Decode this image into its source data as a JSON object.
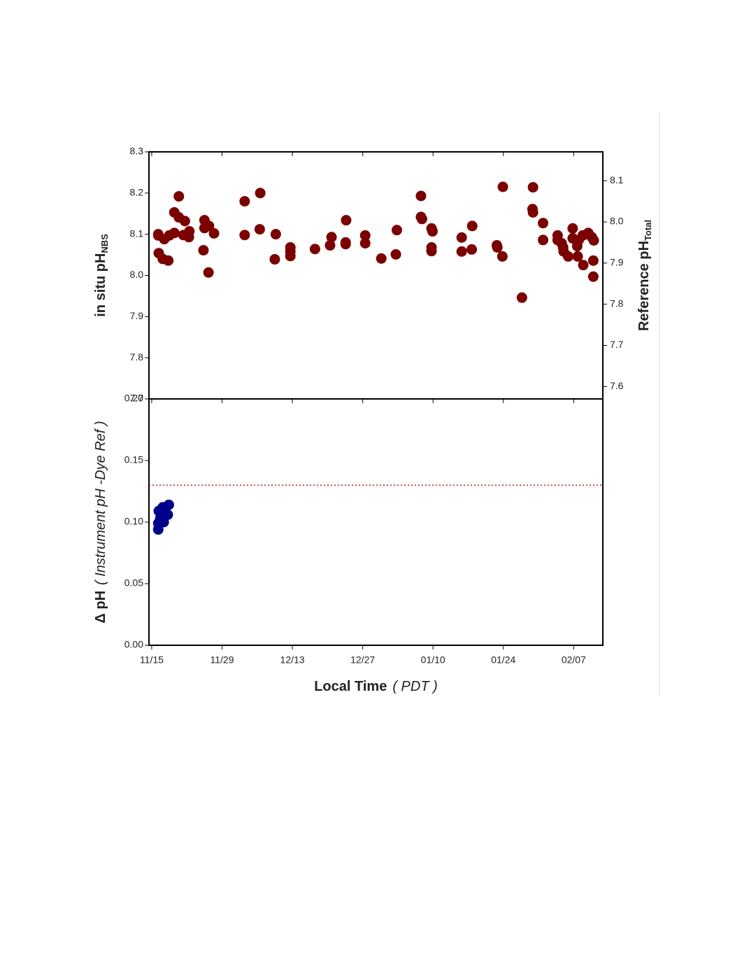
{
  "chart_data": [
    {
      "type": "scatter",
      "color": "#7b0000",
      "ylabel": {
        "text": "in situ pH",
        "sub": "NBS"
      },
      "y2label": {
        "text": "Reference pH",
        "sub": "Total"
      },
      "xlim": [
        -0.55,
        89.8
      ],
      "ylim": [
        7.7,
        8.3
      ],
      "yticks": [
        7.7,
        7.8,
        7.9,
        {
          "value": 8,
          "label": "8.0"
        },
        8.1,
        8.2,
        8.3
      ],
      "y2lim": [
        7.57,
        8.17
      ],
      "y2ticks": [
        7.6,
        7.7,
        7.8,
        7.9,
        {
          "value": 8,
          "label": "8.0"
        },
        8.1
      ],
      "x": [
        1.3,
        1.3,
        1.4,
        2.2,
        2.5,
        3.3,
        3.5,
        4.5,
        4.5,
        5.4,
        5.4,
        6.3,
        6.6,
        7.4,
        7.5,
        10.3,
        10.5,
        10.5,
        11.4,
        11.3,
        12.4,
        18.5,
        18.5,
        21.5,
        21.6,
        24.5,
        24.7,
        27.6,
        27.6,
        27.6,
        32.5,
        35.5,
        35.8,
        38.6,
        38.6,
        38.7,
        42.5,
        42.5,
        45.7,
        48.6,
        48.8,
        53.6,
        53.6,
        53.8,
        55.7,
        55.9,
        55.7,
        55.7,
        61.7,
        61.7,
        63.7,
        63.8,
        68.7,
        68.8,
        69.8,
        69.9,
        73.7,
        75.9,
        75.8,
        75.9,
        77.9,
        77.9,
        80.8,
        80.8,
        81.6,
        81.9,
        82.0,
        82.9,
        83.8,
        83.8,
        84.7,
        84.8,
        85.0,
        85.9,
        85.8,
        86.9,
        87.6,
        87.9,
        87.9,
        88.0
      ],
      "values": [
        8.1,
        8.097,
        8.054,
        8.04,
        8.088,
        8.036,
        8.097,
        8.153,
        8.103,
        8.192,
        8.141,
        8.098,
        8.132,
        8.093,
        8.107,
        8.061,
        8.134,
        8.115,
        8.12,
        8.007,
        8.102,
        8.18,
        8.098,
        8.112,
        8.2,
        8.039,
        8.1,
        8.068,
        8.047,
        8.058,
        8.064,
        8.073,
        8.093,
        8.08,
        8.076,
        8.134,
        8.097,
        8.078,
        8.041,
        8.051,
        8.11,
        8.193,
        8.142,
        8.137,
        8.114,
        8.107,
        8.068,
        8.059,
        8.092,
        8.058,
        8.063,
        8.12,
        8.073,
        8.068,
        8.046,
        8.215,
        7.946,
        8.214,
        8.161,
        8.153,
        8.127,
        8.086,
        8.097,
        8.086,
        8.078,
        8.068,
        8.058,
        8.046,
        8.114,
        8.09,
        8.071,
        8.046,
        8.086,
        8.025,
        8.097,
        8.103,
        8.093,
        8.036,
        7.997,
        8.085
      ]
    },
    {
      "type": "scatter",
      "color": "#00008b",
      "ylabel": {
        "text": "Δ pH",
        "italic": "( Instrument pH -Dye Ref )"
      },
      "xlabel": {
        "text": "Local Time",
        "italic": "( PDT )"
      },
      "xlim": [
        -0.55,
        89.8
      ],
      "xticks": [
        {
          "value": 0,
          "label": "11/15"
        },
        {
          "value": 14,
          "label": "11/29"
        },
        {
          "value": 28,
          "label": "12/13"
        },
        {
          "value": 42,
          "label": "12/27"
        },
        {
          "value": 56,
          "label": "01/10"
        },
        {
          "value": 70,
          "label": "01/24"
        },
        {
          "value": 84,
          "label": "02/07"
        }
      ],
      "ylim": [
        0,
        0.2
      ],
      "yticks": [
        {
          "value": 0,
          "label": "0.00"
        },
        0.05,
        {
          "value": 0.1,
          "label": "0.10"
        },
        0.15,
        {
          "value": 0.2,
          "label": "0.20"
        }
      ],
      "hline": {
        "value": 0.13,
        "color": "#b22222"
      },
      "x": [
        1.3,
        1.3,
        1.4,
        2.2,
        2.4,
        2.4,
        3.2,
        3.4,
        1.7
      ],
      "values": [
        0.094,
        0.099,
        0.109,
        0.112,
        0.1,
        0.105,
        0.106,
        0.114,
        0.103
      ]
    }
  ]
}
